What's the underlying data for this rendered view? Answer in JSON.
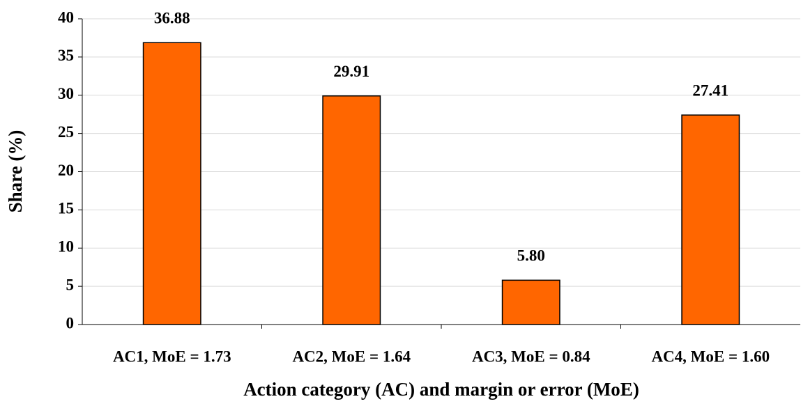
{
  "chart_data": {
    "type": "bar",
    "x_label": "Action category (AC) and margin or error (MoE)",
    "y_label": "Share (%)",
    "categories": [
      "AC1, MoE = 1.73",
      "AC2, MoE = 1.64",
      "AC3, MoE = 0.84",
      "AC4, MoE = 1.60"
    ],
    "values": [
      36.88,
      29.91,
      5.8,
      27.41
    ],
    "value_labels": [
      "36.88",
      "29.91",
      "5.80",
      "27.41"
    ],
    "color": "#ff6600",
    "ylim": [
      0,
      40
    ],
    "yticks": [
      0,
      5,
      10,
      15,
      20,
      25,
      30,
      35,
      40
    ],
    "grid": true
  }
}
